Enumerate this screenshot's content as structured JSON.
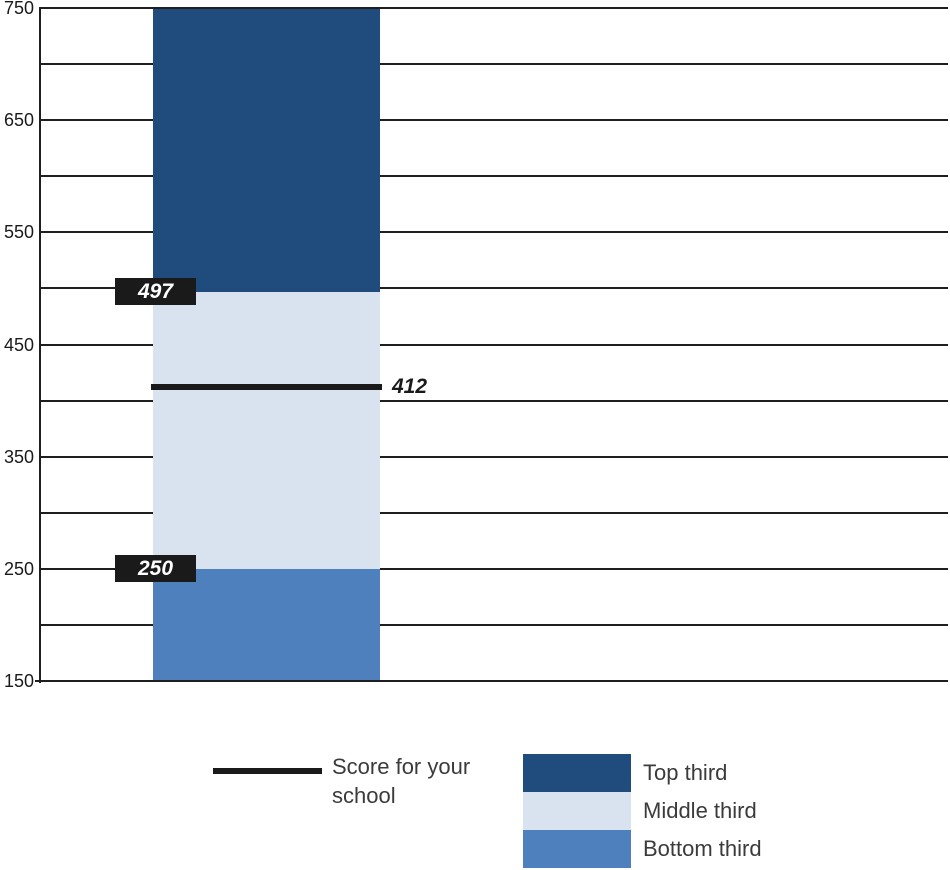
{
  "chart_data": {
    "type": "bar",
    "title": "",
    "y_axis": {
      "min": 150,
      "max": 750,
      "gridline_step": 50,
      "label_step": 100,
      "tick_labels": [
        "750",
        "650",
        "550",
        "450",
        "350",
        "250",
        "150"
      ]
    },
    "segments": [
      {
        "name": "Top third",
        "from": 497,
        "to": 750,
        "color": "#1f4b7d"
      },
      {
        "name": "Middle third",
        "from": 250,
        "to": 497,
        "color": "#d9e2ef"
      },
      {
        "name": "Bottom third",
        "from": 150,
        "to": 250,
        "color": "#4e80bd"
      }
    ],
    "boundary_labels": [
      {
        "text": "497",
        "value": 497
      },
      {
        "text": "250",
        "value": 250
      }
    ],
    "score_line": {
      "label": "412",
      "value": 412,
      "color": "#1a1a1a"
    },
    "legend": [
      {
        "type": "line",
        "label": "Score for your school",
        "color": "#1a1a1a"
      },
      {
        "type": "swatch",
        "label": "Top third",
        "color": "#1f4b7d"
      },
      {
        "type": "swatch",
        "label": "Middle third",
        "color": "#d9e2ef"
      },
      {
        "type": "swatch",
        "label": "Bottom third",
        "color": "#4e80bd"
      }
    ],
    "colors": {
      "axis": "#1f1f1f",
      "label_box": "#1a1a1a",
      "background": "#ffffff"
    }
  }
}
